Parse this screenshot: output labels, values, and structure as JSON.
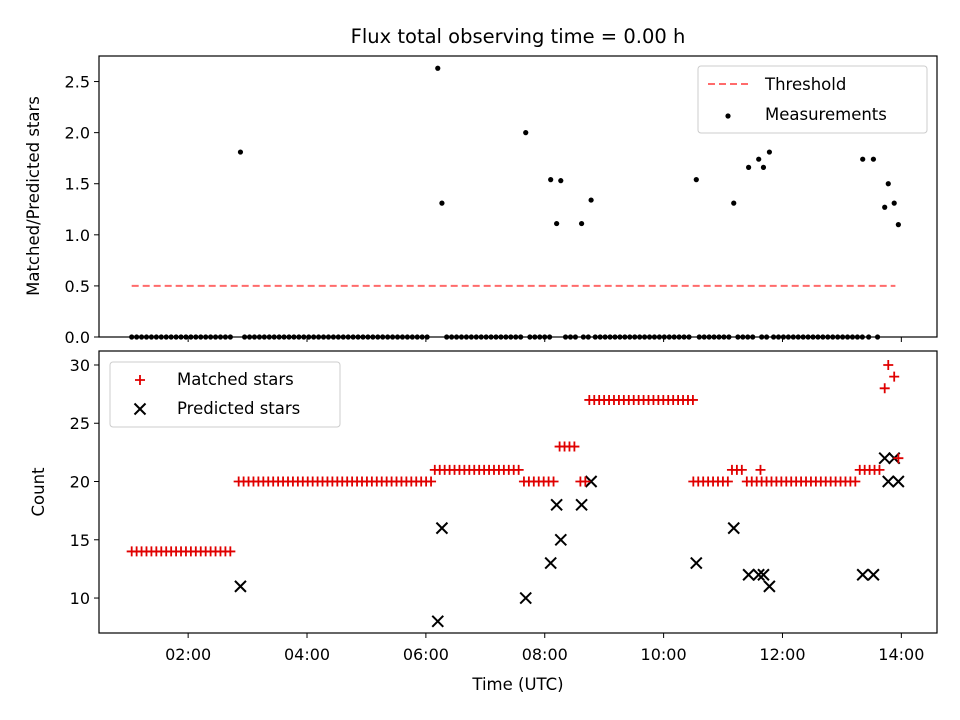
{
  "chart_data": {
    "type": "scatter",
    "title": "Flux total observing time = 0.00 h",
    "x_unit": "hours_utc",
    "xlim": [
      0.5,
      14.6
    ],
    "xticks": [
      2,
      4,
      6,
      8,
      10,
      12,
      14
    ],
    "xticklabels": [
      "02:00",
      "04:00",
      "06:00",
      "08:00",
      "10:00",
      "12:00",
      "14:00"
    ],
    "xlabel": "Time (UTC)",
    "colors": {
      "threshold": "#ff6b6b",
      "measurements": "#000000",
      "matched": "#e00000",
      "predicted": "#000000"
    },
    "top": {
      "ylabel": "Matched/Predicted stars",
      "ylim": [
        0,
        2.75
      ],
      "yticks": [
        0.0,
        0.5,
        1.0,
        1.5,
        2.0,
        2.5
      ],
      "yticklabels": [
        "0.0",
        "0.5",
        "1.0",
        "1.5",
        "2.0",
        "2.5"
      ],
      "legend": {
        "position": "top-right",
        "threshold_label": "Threshold",
        "measurements_label": "Measurements"
      },
      "threshold": {
        "value": 0.5,
        "x_start": 1.05,
        "x_end": 13.9
      },
      "zero_runs": [
        [
          1.05,
          2.75
        ],
        [
          2.95,
          6.1
        ],
        [
          6.35,
          7.65
        ],
        [
          7.75,
          8.1
        ],
        [
          8.35,
          8.55
        ],
        [
          8.65,
          8.75
        ],
        [
          8.85,
          10.5
        ],
        [
          10.6,
          11.15
        ],
        [
          11.25,
          11.5
        ],
        [
          11.65,
          11.75
        ],
        [
          11.85,
          13.4
        ],
        [
          13.45,
          13.5
        ],
        [
          13.6,
          13.65
        ]
      ],
      "zero_step": 0.083,
      "points": [
        {
          "x": 2.88,
          "y": 1.81
        },
        {
          "x": 6.2,
          "y": 2.63
        },
        {
          "x": 6.27,
          "y": 1.31
        },
        {
          "x": 7.68,
          "y": 2.0
        },
        {
          "x": 8.1,
          "y": 1.54
        },
        {
          "x": 8.2,
          "y": 1.11
        },
        {
          "x": 8.27,
          "y": 1.53
        },
        {
          "x": 8.62,
          "y": 1.11
        },
        {
          "x": 8.78,
          "y": 1.34
        },
        {
          "x": 10.55,
          "y": 1.54
        },
        {
          "x": 11.18,
          "y": 1.31
        },
        {
          "x": 11.43,
          "y": 1.66
        },
        {
          "x": 11.6,
          "y": 1.74
        },
        {
          "x": 11.68,
          "y": 1.66
        },
        {
          "x": 11.78,
          "y": 1.81
        },
        {
          "x": 13.35,
          "y": 1.74
        },
        {
          "x": 13.53,
          "y": 1.74
        },
        {
          "x": 13.72,
          "y": 1.27
        },
        {
          "x": 13.78,
          "y": 1.5
        },
        {
          "x": 13.88,
          "y": 1.31
        },
        {
          "x": 13.95,
          "y": 1.1
        }
      ]
    },
    "bottom": {
      "ylabel": "Count",
      "ylim": [
        7,
        31.2
      ],
      "yticks": [
        10,
        15,
        20,
        25,
        30
      ],
      "yticklabels": [
        "10",
        "15",
        "20",
        "25",
        "30"
      ],
      "legend": {
        "position": "top-left",
        "matched_label": "Matched stars",
        "predicted_label": "Predicted stars"
      },
      "matched_runs": [
        {
          "x_start": 1.05,
          "x_end": 2.75,
          "y": 14
        },
        {
          "x_start": 2.85,
          "x_end": 6.15,
          "y": 20
        },
        {
          "x_start": 6.15,
          "x_end": 7.6,
          "y": 21
        },
        {
          "x_start": 7.65,
          "x_end": 8.15,
          "y": 20
        },
        {
          "x_start": 8.25,
          "x_end": 8.5,
          "y": 23
        },
        {
          "x_start": 8.6,
          "x_end": 8.7,
          "y": 20
        },
        {
          "x_start": 8.75,
          "x_end": 10.5,
          "y": 27
        },
        {
          "x_start": 10.5,
          "x_end": 11.15,
          "y": 20
        },
        {
          "x_start": 11.15,
          "x_end": 11.35,
          "y": 21
        },
        {
          "x_start": 11.4,
          "x_end": 13.3,
          "y": 20
        },
        {
          "x_start": 13.3,
          "x_end": 13.65,
          "y": 21
        }
      ],
      "matched_step": 0.083,
      "matched_points": [
        {
          "x": 11.63,
          "y": 21
        },
        {
          "x": 13.72,
          "y": 28
        },
        {
          "x": 13.78,
          "y": 30
        },
        {
          "x": 13.88,
          "y": 29
        },
        {
          "x": 13.95,
          "y": 22
        }
      ],
      "predicted_points": [
        {
          "x": 2.88,
          "y": 11
        },
        {
          "x": 6.2,
          "y": 8
        },
        {
          "x": 6.27,
          "y": 16
        },
        {
          "x": 7.68,
          "y": 10
        },
        {
          "x": 8.1,
          "y": 13
        },
        {
          "x": 8.2,
          "y": 18
        },
        {
          "x": 8.27,
          "y": 15
        },
        {
          "x": 8.62,
          "y": 18
        },
        {
          "x": 8.78,
          "y": 20
        },
        {
          "x": 10.55,
          "y": 13
        },
        {
          "x": 11.18,
          "y": 16
        },
        {
          "x": 11.43,
          "y": 12
        },
        {
          "x": 11.6,
          "y": 12
        },
        {
          "x": 11.68,
          "y": 12
        },
        {
          "x": 11.78,
          "y": 11
        },
        {
          "x": 13.35,
          "y": 12
        },
        {
          "x": 13.53,
          "y": 12
        },
        {
          "x": 13.72,
          "y": 22
        },
        {
          "x": 13.78,
          "y": 20
        },
        {
          "x": 13.88,
          "y": 22
        },
        {
          "x": 13.95,
          "y": 20
        }
      ]
    }
  }
}
